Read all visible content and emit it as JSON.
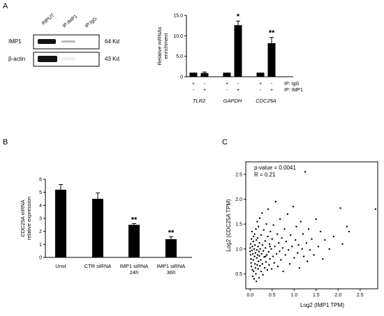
{
  "panel_letters": [
    "A",
    "B",
    "C"
  ],
  "western_blot": {
    "columns": [
      "INPUT",
      "IP:IMP1",
      "IP:IgG"
    ],
    "rows": [
      {
        "label": "IMP1",
        "size": "64 Kd"
      },
      {
        "label": "β-actin",
        "size": "43 Kd"
      }
    ]
  },
  "legend_rows": {
    "labels": [
      "IP: IgG",
      "IP: IMP1"
    ],
    "signs": [
      [
        "+",
        "-"
      ],
      [
        "-",
        "+"
      ],
      [
        "+",
        "-"
      ],
      [
        "-",
        "+"
      ],
      [
        "+",
        "-"
      ],
      [
        "-",
        "+"
      ]
    ]
  },
  "chart_data": [
    {
      "type": "bar",
      "ylabel": "Relative mRNAs enrichment",
      "ylim": [
        0,
        15
      ],
      "yticks": [
        0,
        5.0,
        10.0,
        15.0
      ],
      "groups": [
        "TLR2",
        "GAPDH",
        "CDC25A"
      ],
      "series": [
        {
          "name": "IP: IgG",
          "values": [
            1.0,
            1.0,
            1.0
          ],
          "errors": [
            0,
            0,
            0
          ]
        },
        {
          "name": "IP: IMP1",
          "values": [
            0.9,
            12.6,
            8.2
          ],
          "errors": [
            0.25,
            1.0,
            1.4
          ]
        }
      ],
      "annotations": [
        "",
        "*",
        "**"
      ]
    },
    {
      "type": "bar",
      "ylabel": "CDC25A mRNA relative expression",
      "ylim": [
        0,
        6
      ],
      "yticks": [
        0,
        1,
        2,
        3,
        4,
        5,
        6
      ],
      "categories": [
        "Unst",
        "CTR siRNA",
        "IMP1 siRNA 24h",
        "IMP1 siRNA 36h"
      ],
      "category_lines": [
        [
          "Unst"
        ],
        [
          "CTR siRNA"
        ],
        [
          "IMP1 siRNA",
          "24h"
        ],
        [
          "IMP1 siRNA",
          "36h"
        ]
      ],
      "values": [
        5.2,
        4.5,
        2.5,
        1.4
      ],
      "errors": [
        0.4,
        0.45,
        0.1,
        0.2
      ],
      "annotations": [
        "",
        "",
        "**",
        "**"
      ]
    },
    {
      "type": "scatter",
      "xlabel": "Log2 (IMP1 TPM)",
      "ylabel": "Log2 (CDC25A TPM)",
      "xlim": [
        -0.1,
        2.9
      ],
      "ylim": [
        0.2,
        2.75
      ],
      "xticks": [
        0.0,
        0.5,
        1.0,
        1.5,
        2.0,
        2.5
      ],
      "yticks": [
        0.5,
        1.0,
        1.5,
        2.0,
        2.5
      ],
      "stats": [
        "p-value = 0.0041",
        "R = 0.21"
      ],
      "points": [
        [
          0.0,
          0.95
        ],
        [
          0.0,
          1.02
        ],
        [
          0.01,
          0.88
        ],
        [
          0.01,
          1.1
        ],
        [
          0.02,
          0.8
        ],
        [
          0.02,
          0.72
        ],
        [
          0.03,
          1.2
        ],
        [
          0.03,
          0.65
        ],
        [
          0.04,
          1.35
        ],
        [
          0.04,
          0.97
        ],
        [
          0.05,
          0.58
        ],
        [
          0.05,
          1.05
        ],
        [
          0.06,
          0.45
        ],
        [
          0.06,
          0.9
        ],
        [
          0.07,
          1.15
        ],
        [
          0.07,
          0.78
        ],
        [
          0.08,
          1.25
        ],
        [
          0.08,
          0.55
        ],
        [
          0.09,
          0.4
        ],
        [
          0.09,
          1.0
        ],
        [
          0.1,
          0.85
        ],
        [
          0.1,
          1.3
        ],
        [
          0.11,
          0.7
        ],
        [
          0.11,
          1.08
        ],
        [
          0.12,
          0.62
        ],
        [
          0.12,
          0.92
        ],
        [
          0.13,
          1.4
        ],
        [
          0.13,
          0.5
        ],
        [
          0.14,
          0.35
        ],
        [
          0.14,
          1.18
        ],
        [
          0.15,
          0.82
        ],
        [
          0.15,
          0.98
        ],
        [
          0.16,
          1.55
        ],
        [
          0.16,
          0.68
        ],
        [
          0.17,
          0.88
        ],
        [
          0.17,
          1.22
        ],
        [
          0.18,
          0.6
        ],
        [
          0.18,
          1.05
        ],
        [
          0.19,
          0.75
        ],
        [
          0.19,
          1.45
        ],
        [
          0.2,
          0.95
        ],
        [
          0.2,
          0.42
        ],
        [
          0.21,
          1.12
        ],
        [
          0.21,
          0.86
        ],
        [
          0.22,
          1.62
        ],
        [
          0.22,
          0.66
        ],
        [
          0.23,
          1.0
        ],
        [
          0.24,
          0.78
        ],
        [
          0.25,
          1.28
        ],
        [
          0.25,
          0.55
        ],
        [
          0.26,
          0.9
        ],
        [
          0.27,
          1.72
        ],
        [
          0.28,
          0.7
        ],
        [
          0.28,
          1.08
        ],
        [
          0.29,
          0.48
        ],
        [
          0.3,
          0.96
        ],
        [
          0.31,
          1.38
        ],
        [
          0.32,
          0.84
        ],
        [
          0.33,
          0.62
        ],
        [
          0.34,
          1.16
        ],
        [
          0.35,
          1.02
        ],
        [
          0.36,
          0.74
        ],
        [
          0.37,
          1.5
        ],
        [
          0.38,
          0.88
        ],
        [
          0.39,
          0.58
        ],
        [
          0.4,
          1.25
        ],
        [
          0.41,
          1.8
        ],
        [
          0.42,
          0.94
        ],
        [
          0.43,
          0.68
        ],
        [
          0.44,
          1.1
        ],
        [
          0.45,
          0.8
        ],
        [
          0.46,
          1.35
        ],
        [
          0.48,
          1.0
        ],
        [
          0.49,
          0.6
        ],
        [
          0.5,
          1.2
        ],
        [
          0.52,
          0.85
        ],
        [
          0.53,
          1.48
        ],
        [
          0.55,
          0.72
        ],
        [
          0.56,
          1.05
        ],
        [
          0.58,
          1.95
        ],
        [
          0.6,
          0.9
        ],
        [
          0.62,
          1.3
        ],
        [
          0.63,
          0.65
        ],
        [
          0.65,
          1.12
        ],
        [
          0.67,
          0.95
        ],
        [
          0.68,
          1.6
        ],
        [
          0.7,
          0.78
        ],
        [
          0.72,
          1.22
        ],
        [
          0.74,
          1.02
        ],
        [
          0.75,
          0.55
        ],
        [
          0.78,
          1.4
        ],
        [
          0.8,
          0.88
        ],
        [
          0.82,
          1.15
        ],
        [
          0.85,
          1.7
        ],
        [
          0.87,
          0.98
        ],
        [
          0.9,
          0.7
        ],
        [
          0.92,
          1.28
        ],
        [
          0.95,
          1.05
        ],
        [
          0.98,
          1.85
        ],
        [
          1.0,
          0.82
        ],
        [
          1.03,
          1.18
        ],
        [
          1.05,
          1.45
        ],
        [
          1.08,
          0.92
        ],
        [
          1.1,
          1.08
        ],
        [
          1.12,
          0.62
        ],
        [
          1.15,
          1.55
        ],
        [
          1.18,
          1.0
        ],
        [
          1.2,
          1.3
        ],
        [
          1.22,
          0.85
        ],
        [
          1.25,
          2.55
        ],
        [
          1.28,
          1.12
        ],
        [
          1.3,
          0.75
        ],
        [
          1.33,
          1.4
        ],
        [
          1.36,
          0.98
        ],
        [
          1.4,
          1.2
        ],
        [
          1.45,
          0.88
        ],
        [
          1.5,
          1.6
        ],
        [
          1.55,
          1.05
        ],
        [
          1.6,
          1.35
        ],
        [
          1.65,
          0.8
        ],
        [
          1.7,
          1.18
        ],
        [
          1.8,
          1.0
        ],
        [
          1.9,
          1.25
        ],
        [
          2.05,
          1.82
        ],
        [
          2.1,
          1.1
        ],
        [
          2.2,
          1.45
        ],
        [
          2.25,
          1.35
        ],
        [
          2.85,
          1.8
        ],
        [
          0.45,
          1.05
        ],
        [
          0.35,
          0.85
        ]
      ]
    }
  ]
}
